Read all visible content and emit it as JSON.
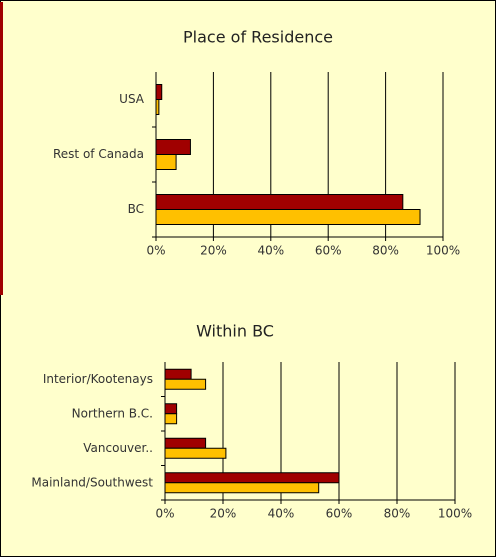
{
  "chart_data": [
    {
      "type": "bar",
      "orientation": "horizontal",
      "title": "Place of Residence",
      "categories": [
        "BC",
        "Rest of Canada",
        "USA"
      ],
      "series": [
        {
          "color": "#a00000",
          "values": [
            86,
            12,
            2
          ]
        },
        {
          "color": "#ffc000",
          "values": [
            92,
            7,
            1
          ]
        }
      ],
      "xlim": [
        0,
        100
      ],
      "xticks": [
        {
          "value": 0,
          "label": "0%"
        },
        {
          "value": 20,
          "label": "20%"
        },
        {
          "value": 40,
          "label": "40%"
        },
        {
          "value": 60,
          "label": "60%"
        },
        {
          "value": 80,
          "label": "80%"
        },
        {
          "value": 100,
          "label": "100%"
        }
      ],
      "grid": true
    },
    {
      "type": "bar",
      "orientation": "horizontal",
      "title": "Within BC",
      "categories": [
        "Mainland/Southwest",
        "Vancouver..",
        "Northern B.C.",
        "Interior/Kootenays"
      ],
      "series": [
        {
          "color": "#a00000",
          "values": [
            60,
            14,
            4,
            9
          ]
        },
        {
          "color": "#ffc000",
          "values": [
            53,
            21,
            4,
            14
          ]
        }
      ],
      "xlim": [
        0,
        100
      ],
      "xticks": [
        {
          "value": 0,
          "label": "0%"
        },
        {
          "value": 20,
          "label": "20%"
        },
        {
          "value": 40,
          "label": "40%"
        },
        {
          "value": 60,
          "label": "60%"
        },
        {
          "value": 80,
          "label": "80%"
        },
        {
          "value": 100,
          "label": "100%"
        }
      ],
      "grid": true
    }
  ]
}
